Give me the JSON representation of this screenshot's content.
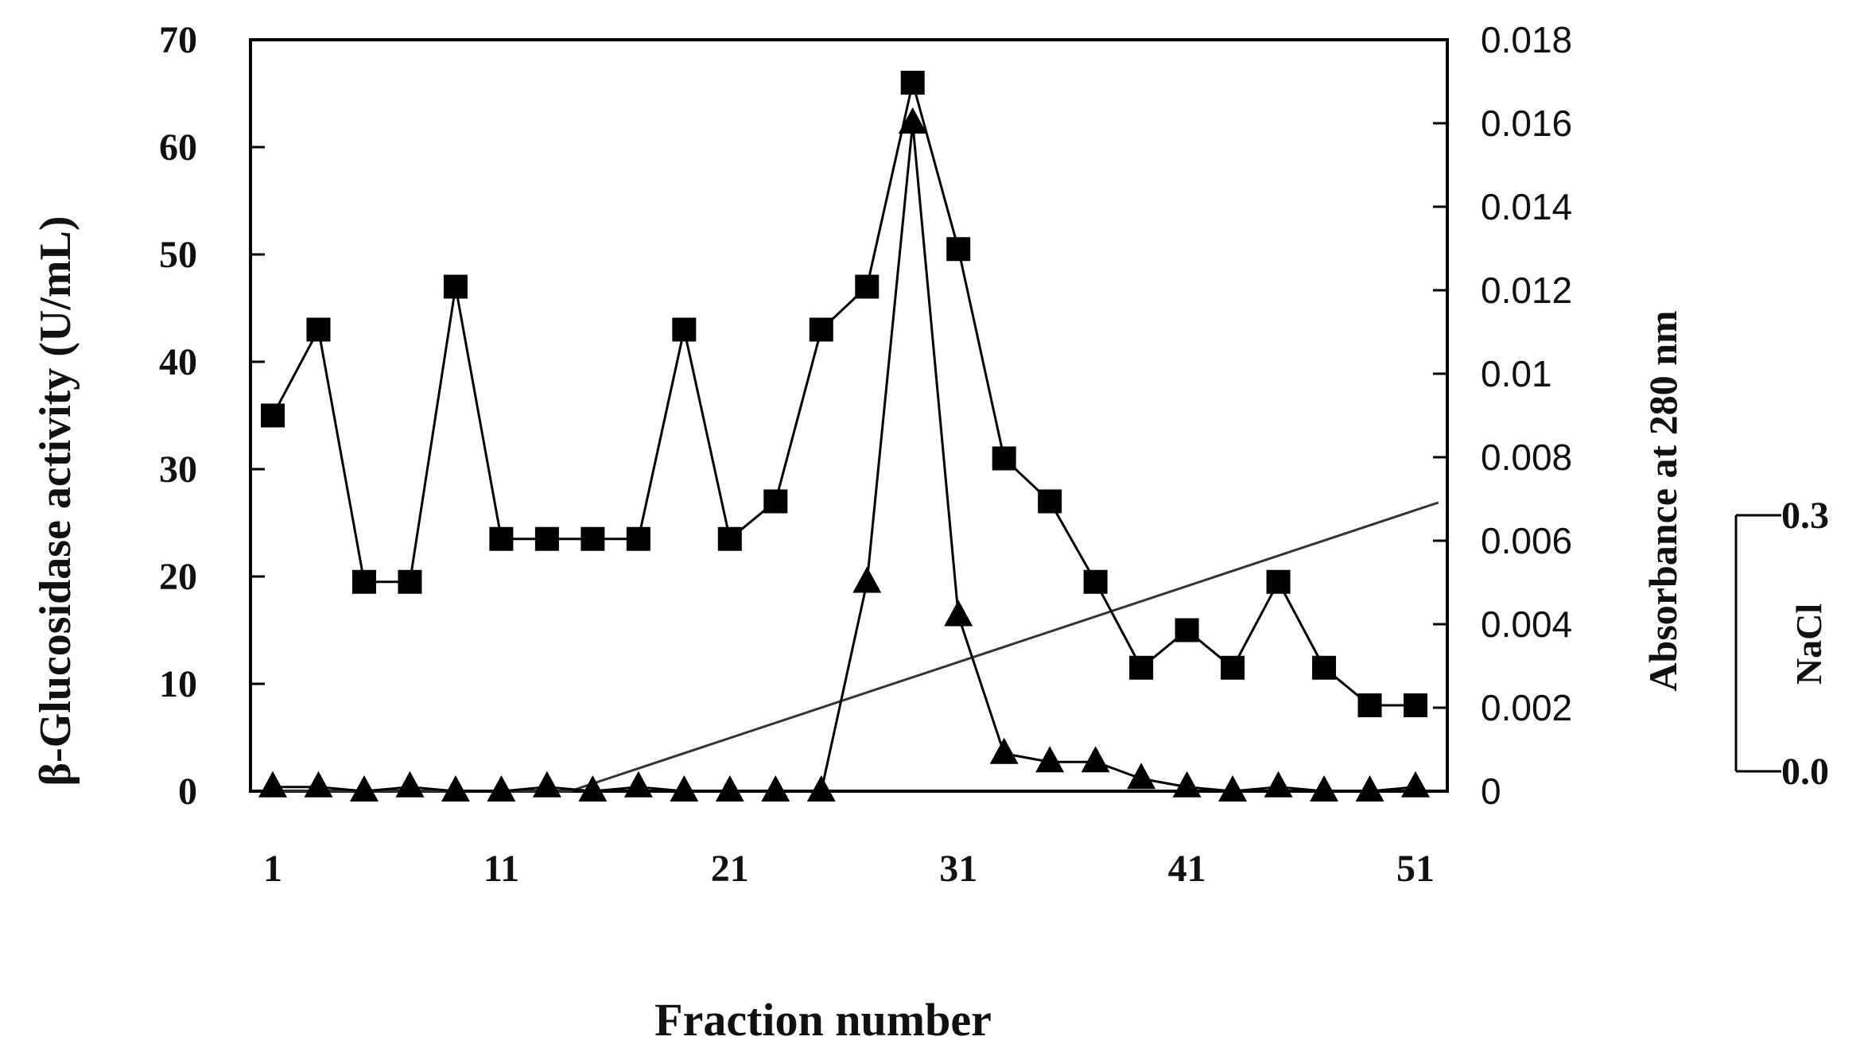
{
  "chart_data": {
    "type": "line",
    "xlabel": "Fraction number",
    "ylabel": "β-Glucosidase activity (U/mL)",
    "y2label": "Absorbance at 280 nm",
    "y3label": "NaCl",
    "xlim": [
      1,
      51
    ],
    "ylim": [
      0,
      70
    ],
    "y2lim": [
      0,
      0.018
    ],
    "y3lim": [
      0.0,
      0.3
    ],
    "x_ticks": [
      "1",
      "11",
      "21",
      "31",
      "41",
      "51"
    ],
    "y_ticks": [
      "0",
      "10",
      "20",
      "30",
      "40",
      "50",
      "60",
      "70"
    ],
    "y2_ticks": [
      "0",
      "0.002",
      "0.004",
      "0.006",
      "0.008",
      "0.01",
      "0.012",
      "0.014",
      "0.016",
      "0.018"
    ],
    "y3_ticks": [
      "0.0",
      "0.3"
    ],
    "grid": false,
    "series": [
      {
        "marker": "square",
        "axis": "left",
        "color": "#000000",
        "x": [
          1,
          3,
          5,
          7,
          9,
          11,
          13,
          15,
          17,
          19,
          21,
          23,
          25,
          27,
          29,
          31,
          33,
          35,
          37,
          39,
          41,
          43,
          45,
          47,
          49,
          51
        ],
        "y": [
          35,
          43,
          19.5,
          19.5,
          47,
          23.5,
          23.5,
          23.5,
          23.5,
          43,
          23.5,
          27,
          43,
          47,
          66,
          50.5,
          31,
          27,
          19.5,
          11.5,
          15,
          11.5,
          19.5,
          11.5,
          8,
          8
        ]
      },
      {
        "marker": "triangle",
        "axis": "right",
        "color": "#000000",
        "x": [
          1,
          3,
          5,
          7,
          9,
          11,
          13,
          15,
          17,
          19,
          21,
          23,
          25,
          27,
          29,
          31,
          33,
          35,
          37,
          39,
          41,
          43,
          45,
          47,
          49,
          51
        ],
        "y": [
          0.0001,
          0.0001,
          0,
          0.0001,
          0,
          0,
          0.0001,
          0,
          0.0001,
          0,
          0,
          0,
          0,
          0.005,
          0.016,
          0.0042,
          0.0009,
          0.0007,
          0.0007,
          0.0003,
          0.0001,
          0,
          0.0001,
          0,
          0,
          0.0001
        ]
      },
      {
        "marker": "none",
        "axis": "nacl",
        "color": "#333333",
        "x": [
          1,
          14,
          52
        ],
        "y": [
          0.0,
          0.0,
          0.33
        ]
      }
    ]
  }
}
